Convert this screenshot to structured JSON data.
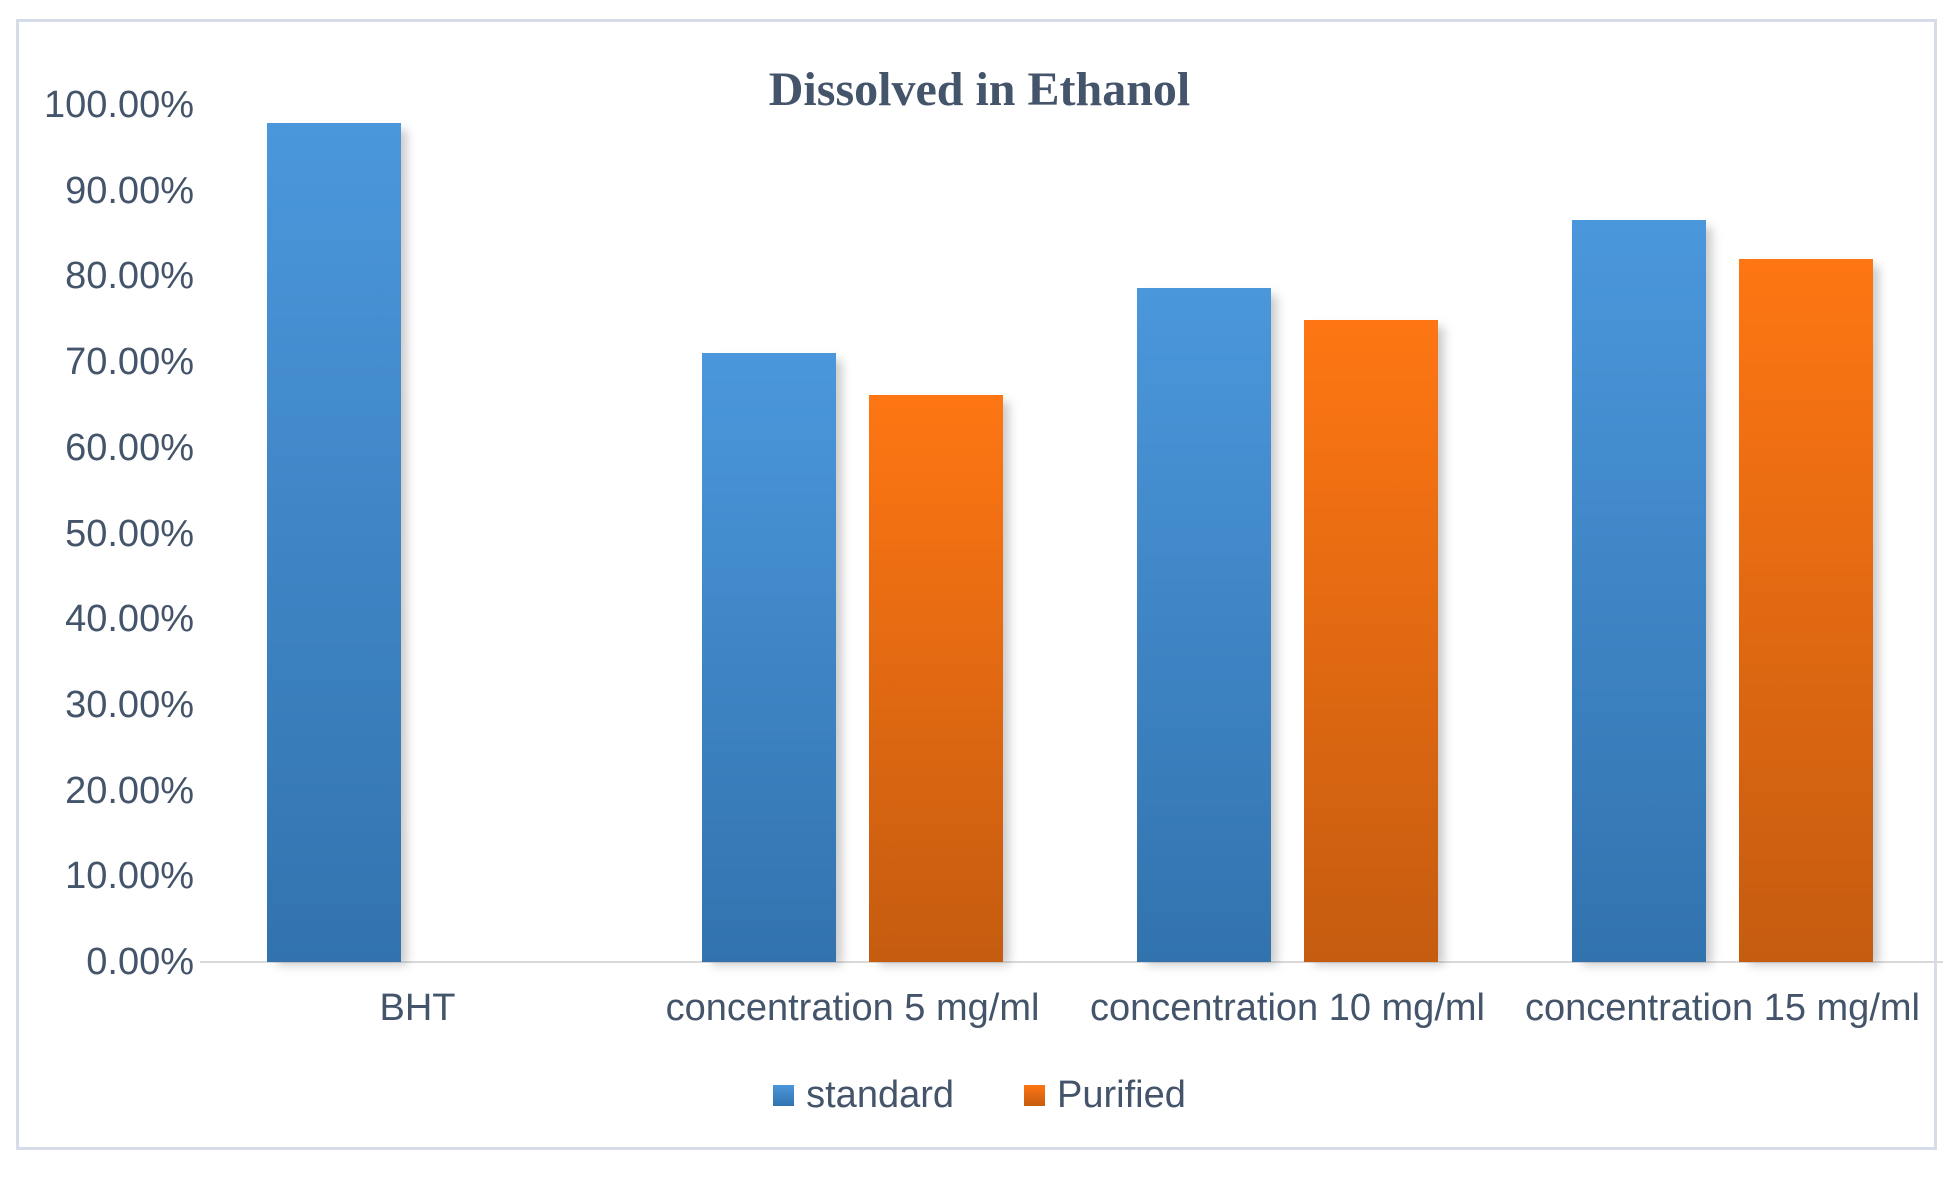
{
  "chart_data": {
    "type": "bar",
    "title": "Dissolved in Ethanol",
    "categories": [
      "BHT",
      "concentration 5 mg/ml",
      "concentration 10 mg/ml",
      "concentration 15 mg/ml"
    ],
    "series": [
      {
        "name": "standard",
        "color_top": "#4B97DC",
        "color_bottom": "#3273AE",
        "values": [
          97.9,
          71.1,
          78.7,
          86.6
        ]
      },
      {
        "name": "Purified",
        "color_top": "#FE7613",
        "color_bottom": "#C55C10",
        "values": [
          null,
          66.2,
          74.9,
          82.0
        ]
      }
    ],
    "y_axis": {
      "min": 0,
      "max": 100,
      "step": 10,
      "tick_labels": [
        "0.00%",
        "10.00%",
        "20.00%",
        "30.00%",
        "40.00%",
        "50.00%",
        "60.00%",
        "70.00%",
        "80.00%",
        "90.00%",
        "100.00%"
      ]
    },
    "xlabel": "",
    "ylabel": "",
    "grid": false,
    "legend_position": "bottom",
    "colors": {
      "text": "#44546A",
      "axis_line": "#D9D9D9",
      "frame_border": "#D7DDE8",
      "background": "#FFFFFF"
    }
  }
}
